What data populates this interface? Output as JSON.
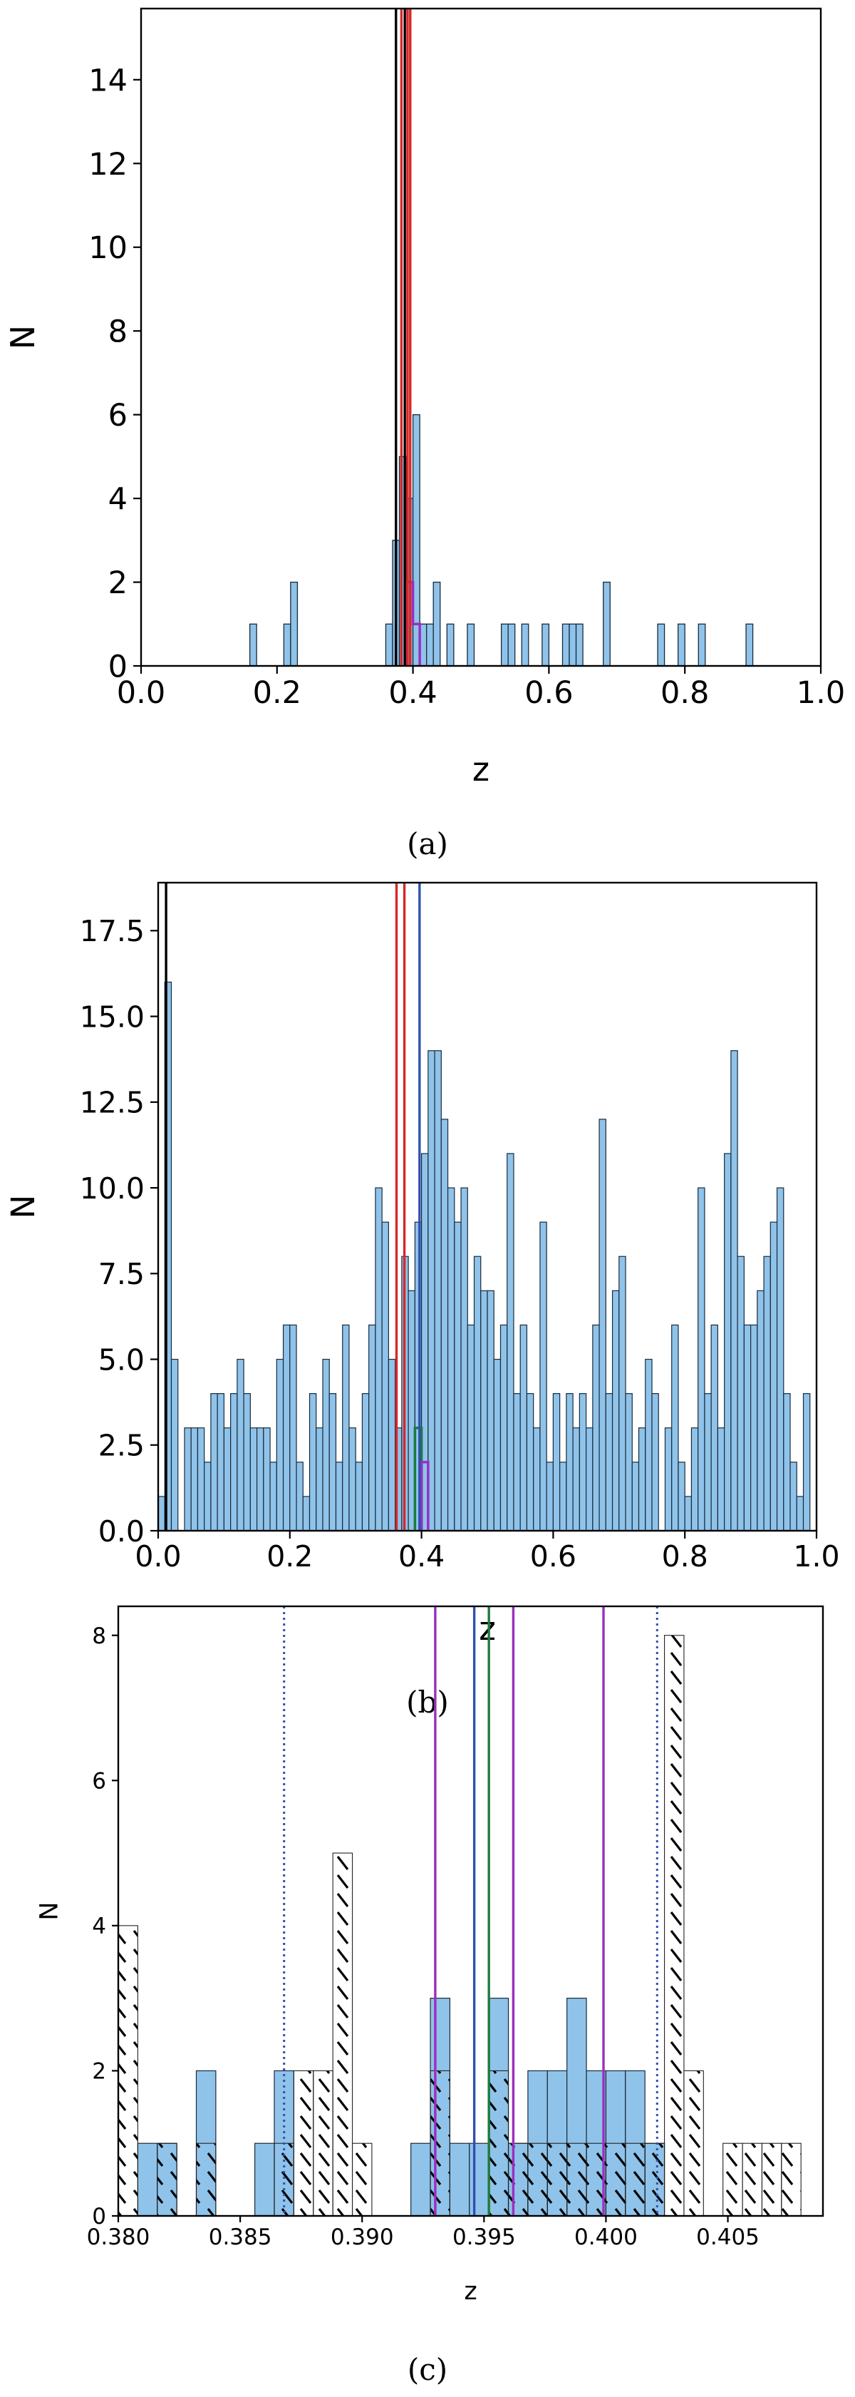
{
  "chart_data": [
    {
      "type": "bar",
      "panel_label": "(a)",
      "xlabel": "z",
      "ylabel": "N",
      "xlim": [
        0.0,
        1.0
      ],
      "ylim": [
        0,
        15.7
      ],
      "xticks": [
        "0.0",
        "0.2",
        "0.4",
        "0.6",
        "0.8",
        "1.0"
      ],
      "yticks": [
        "0",
        "2",
        "4",
        "6",
        "8",
        "10",
        "12",
        "14"
      ],
      "grid": false,
      "bar_color": "#8fc3ea",
      "bin_width": 0.01,
      "bars": [
        {
          "x": 0.16,
          "y": 1
        },
        {
          "x": 0.21,
          "y": 1
        },
        {
          "x": 0.22,
          "y": 2
        },
        {
          "x": 0.36,
          "y": 1
        },
        {
          "x": 0.37,
          "y": 3
        },
        {
          "x": 0.38,
          "y": 5
        },
        {
          "x": 0.39,
          "y": 4
        },
        {
          "x": 0.4,
          "y": 6
        },
        {
          "x": 0.41,
          "y": 1
        },
        {
          "x": 0.42,
          "y": 1
        },
        {
          "x": 0.43,
          "y": 2
        },
        {
          "x": 0.45,
          "y": 1
        },
        {
          "x": 0.48,
          "y": 1
        },
        {
          "x": 0.53,
          "y": 1
        },
        {
          "x": 0.54,
          "y": 1
        },
        {
          "x": 0.56,
          "y": 1
        },
        {
          "x": 0.59,
          "y": 1
        },
        {
          "x": 0.62,
          "y": 1
        },
        {
          "x": 0.63,
          "y": 1
        },
        {
          "x": 0.64,
          "y": 1
        },
        {
          "x": 0.68,
          "y": 2
        },
        {
          "x": 0.76,
          "y": 1
        },
        {
          "x": 0.79,
          "y": 1
        },
        {
          "x": 0.82,
          "y": 1
        },
        {
          "x": 0.89,
          "y": 1
        }
      ],
      "vlines": [
        {
          "x": 0.375,
          "color": "#000000"
        },
        {
          "x": 0.383,
          "color": "#d62728"
        },
        {
          "x": 0.388,
          "color": "#000000"
        },
        {
          "x": 0.392,
          "color": "#d62728"
        },
        {
          "x": 0.396,
          "color": "#d62728"
        }
      ],
      "step_outlines": [
        {
          "color": "#9a2fc0",
          "points": [
            [
              0.39,
              0
            ],
            [
              0.39,
              2
            ],
            [
              0.4,
              2
            ],
            [
              0.4,
              1
            ],
            [
              0.41,
              1
            ],
            [
              0.41,
              0
            ]
          ]
        }
      ]
    },
    {
      "type": "bar",
      "panel_label": "(b)",
      "xlabel": "z",
      "ylabel": "N",
      "xlim": [
        0.0,
        1.0
      ],
      "ylim": [
        0,
        18.9
      ],
      "xticks": [
        "0.0",
        "0.2",
        "0.4",
        "0.6",
        "0.8",
        "1.0"
      ],
      "yticks": [
        "0.0",
        "2.5",
        "5.0",
        "7.5",
        "10.0",
        "12.5",
        "15.0",
        "17.5"
      ],
      "grid": false,
      "bar_color": "#8fc3ea",
      "bin_width": 0.01,
      "values": [
        1,
        16,
        5,
        0,
        3,
        3,
        3,
        2,
        4,
        4,
        3,
        4,
        5,
        4,
        3,
        3,
        3,
        2,
        5,
        6,
        6,
        2,
        1,
        4,
        3,
        5,
        4,
        2,
        6,
        3,
        2,
        4,
        6,
        10,
        9,
        5,
        3,
        8,
        7,
        9,
        11,
        14,
        14,
        12,
        10,
        9,
        10,
        6,
        8,
        7,
        7,
        5,
        6,
        11,
        4,
        6,
        4,
        3,
        9,
        2,
        4,
        2,
        4,
        3,
        4,
        3,
        6,
        12,
        4,
        7,
        8,
        4,
        2,
        3,
        5,
        4,
        0,
        3,
        6,
        2,
        1,
        3,
        10,
        4,
        6,
        3,
        11,
        14,
        8,
        6,
        6,
        7,
        8,
        9,
        10,
        4,
        2,
        1,
        4,
        0
      ],
      "vlines": [
        {
          "x": 0.012,
          "color": "#000000"
        },
        {
          "x": 0.362,
          "color": "#d62728"
        },
        {
          "x": 0.374,
          "color": "#d62728"
        },
        {
          "x": 0.397,
          "color": "#3050b0"
        }
      ],
      "step_outlines": [
        {
          "color": "#1e7a3c",
          "points": [
            [
              0.39,
              0
            ],
            [
              0.39,
              3
            ],
            [
              0.4,
              3
            ],
            [
              0.4,
              0
            ]
          ]
        },
        {
          "color": "#9a2fc0",
          "points": [
            [
              0.4,
              0
            ],
            [
              0.4,
              2
            ],
            [
              0.41,
              2
            ],
            [
              0.41,
              0
            ]
          ]
        }
      ]
    },
    {
      "type": "bar",
      "panel_label": "(c)",
      "xlabel": "z",
      "ylabel": "N",
      "xlim": [
        0.38,
        0.4089
      ],
      "ylim": [
        0,
        8.4
      ],
      "xticks": [
        "0.380",
        "0.385",
        "0.390",
        "0.395",
        "0.400",
        "0.405"
      ],
      "yticks": [
        "0",
        "2",
        "4",
        "6",
        "8"
      ],
      "grid": false,
      "bar_color": "#8fc3ea",
      "bin_width": 0.0008,
      "filled_bars": [
        {
          "x": 0.3808,
          "y": 1
        },
        {
          "x": 0.3816,
          "y": 1
        },
        {
          "x": 0.3832,
          "y": 2
        },
        {
          "x": 0.3856,
          "y": 1
        },
        {
          "x": 0.3864,
          "y": 2
        },
        {
          "x": 0.392,
          "y": 1
        },
        {
          "x": 0.3928,
          "y": 3
        },
        {
          "x": 0.3936,
          "y": 1
        },
        {
          "x": 0.3944,
          "y": 1
        },
        {
          "x": 0.3952,
          "y": 3
        },
        {
          "x": 0.396,
          "y": 1
        },
        {
          "x": 0.3968,
          "y": 2
        },
        {
          "x": 0.3976,
          "y": 2
        },
        {
          "x": 0.3984,
          "y": 3
        },
        {
          "x": 0.3992,
          "y": 2
        },
        {
          "x": 0.4,
          "y": 2
        },
        {
          "x": 0.4008,
          "y": 2
        },
        {
          "x": 0.4016,
          "y": 1
        }
      ],
      "hatched_bars": [
        {
          "x": 0.38,
          "y": 4
        },
        {
          "x": 0.3816,
          "y": 1
        },
        {
          "x": 0.3832,
          "y": 1
        },
        {
          "x": 0.3864,
          "y": 1
        },
        {
          "x": 0.3872,
          "y": 2
        },
        {
          "x": 0.388,
          "y": 2
        },
        {
          "x": 0.3888,
          "y": 5
        },
        {
          "x": 0.3896,
          "y": 1
        },
        {
          "x": 0.3928,
          "y": 2
        },
        {
          "x": 0.3952,
          "y": 2
        },
        {
          "x": 0.396,
          "y": 1
        },
        {
          "x": 0.3968,
          "y": 1
        },
        {
          "x": 0.3976,
          "y": 1
        },
        {
          "x": 0.3984,
          "y": 1
        },
        {
          "x": 0.3992,
          "y": 1
        },
        {
          "x": 0.4,
          "y": 1
        },
        {
          "x": 0.4008,
          "y": 1
        },
        {
          "x": 0.4016,
          "y": 1
        },
        {
          "x": 0.4024,
          "y": 8
        },
        {
          "x": 0.4032,
          "y": 2
        },
        {
          "x": 0.4048,
          "y": 1
        },
        {
          "x": 0.4056,
          "y": 1
        },
        {
          "x": 0.4064,
          "y": 1
        },
        {
          "x": 0.4072,
          "y": 1
        }
      ],
      "vlines": [
        {
          "x": 0.3868,
          "color": "#3050b0",
          "style": "dotted"
        },
        {
          "x": 0.393,
          "color": "#9a2fc0",
          "style": "solid"
        },
        {
          "x": 0.3946,
          "color": "#3050b0",
          "style": "solid"
        },
        {
          "x": 0.3952,
          "color": "#1e7a3c",
          "style": "solid"
        },
        {
          "x": 0.3962,
          "color": "#9a2fc0",
          "style": "solid"
        },
        {
          "x": 0.3999,
          "color": "#9a2fc0",
          "style": "solid"
        },
        {
          "x": 0.4021,
          "color": "#3050b0",
          "style": "dotted"
        }
      ]
    }
  ]
}
